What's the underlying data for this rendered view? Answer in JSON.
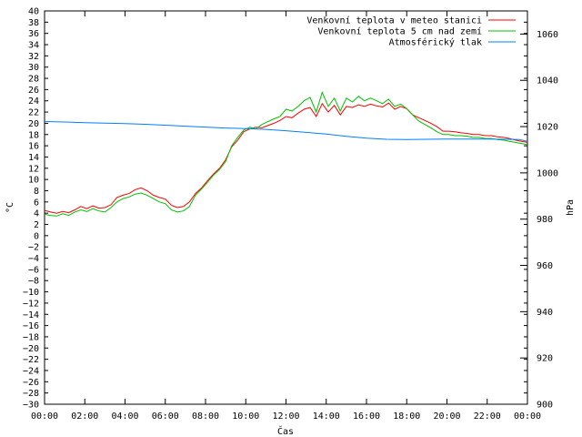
{
  "chart_data": {
    "type": "line",
    "xlabel": "Čas",
    "ylabel": "°C",
    "y2label": "hPa",
    "xlim": [
      0,
      24
    ],
    "ylim": [
      -30,
      40
    ],
    "y2lim": [
      900,
      1070
    ],
    "x_ticks": [
      0,
      2,
      4,
      6,
      8,
      10,
      12,
      14,
      16,
      18,
      20,
      22,
      24
    ],
    "x_tick_labels": [
      "00:00",
      "02:00",
      "04:00",
      "06:00",
      "08:00",
      "10:00",
      "12:00",
      "14:00",
      "16:00",
      "18:00",
      "20:00",
      "22:00",
      "00:00"
    ],
    "y_ticks": [
      -30,
      -28,
      -26,
      -24,
      -22,
      -20,
      -18,
      -16,
      -14,
      -12,
      -10,
      -8,
      -6,
      -4,
      -2,
      0,
      2,
      4,
      6,
      8,
      10,
      12,
      14,
      16,
      18,
      20,
      22,
      24,
      26,
      28,
      30,
      32,
      34,
      36,
      38,
      40
    ],
    "y2_ticks": [
      900,
      920,
      940,
      960,
      980,
      1000,
      1020,
      1040,
      1060
    ],
    "grid": false,
    "legend_position": "top-right",
    "series": [
      {
        "name": "Venkovní teplota v meteo stanici",
        "color": "#ff0000",
        "axis": "left",
        "x": [
          0,
          0.3,
          0.6,
          0.9,
          1.2,
          1.5,
          1.8,
          2.1,
          2.4,
          2.7,
          3.0,
          3.3,
          3.6,
          3.9,
          4.2,
          4.5,
          4.8,
          5.1,
          5.4,
          5.7,
          6.0,
          6.3,
          6.6,
          6.9,
          7.2,
          7.5,
          7.8,
          8.1,
          8.4,
          8.7,
          9.0,
          9.3,
          9.6,
          9.9,
          10.2,
          10.5,
          10.8,
          11.1,
          11.4,
          11.7,
          12.0,
          12.3,
          12.6,
          12.9,
          13.2,
          13.5,
          13.8,
          14.1,
          14.4,
          14.7,
          15.0,
          15.3,
          15.6,
          15.9,
          16.2,
          16.5,
          16.8,
          17.1,
          17.4,
          17.7,
          18.0,
          18.3,
          18.6,
          18.9,
          19.2,
          19.5,
          19.8,
          20.1,
          20.4,
          20.7,
          21.0,
          21.3,
          21.6,
          21.9,
          22.2,
          22.5,
          22.8,
          23.1,
          23.4,
          23.7,
          24.0
        ],
        "y": [
          4.5,
          4.2,
          4.0,
          4.3,
          4.1,
          4.6,
          5.2,
          4.8,
          5.3,
          4.9,
          5.0,
          5.5,
          6.8,
          7.2,
          7.5,
          8.2,
          8.5,
          8.0,
          7.2,
          6.8,
          6.5,
          5.4,
          5.0,
          5.2,
          6.0,
          7.5,
          8.5,
          9.8,
          11.0,
          12.0,
          13.5,
          15.8,
          17.0,
          18.5,
          19.0,
          19.3,
          19.2,
          19.6,
          20.0,
          20.5,
          21.2,
          21.0,
          21.8,
          22.5,
          22.8,
          21.2,
          23.5,
          22.0,
          23.2,
          21.5,
          23.0,
          22.8,
          23.3,
          23.0,
          23.4,
          23.1,
          22.9,
          23.6,
          22.5,
          23.0,
          22.6,
          21.5,
          21.0,
          20.5,
          20.0,
          19.4,
          18.6,
          18.6,
          18.5,
          18.3,
          18.2,
          18.0,
          18.0,
          17.8,
          17.8,
          17.6,
          17.5,
          17.3,
          17.0,
          16.8,
          16.6
        ]
      },
      {
        "name": "Venkovní teplota 5 cm nad zemí",
        "color": "#00c000",
        "axis": "left",
        "x": [
          0,
          0.3,
          0.6,
          0.9,
          1.2,
          1.5,
          1.8,
          2.1,
          2.4,
          2.7,
          3.0,
          3.3,
          3.6,
          3.9,
          4.2,
          4.5,
          4.8,
          5.1,
          5.4,
          5.7,
          6.0,
          6.3,
          6.6,
          6.9,
          7.2,
          7.5,
          7.8,
          8.1,
          8.4,
          8.7,
          9.0,
          9.3,
          9.6,
          9.9,
          10.2,
          10.5,
          10.8,
          11.1,
          11.4,
          11.7,
          12.0,
          12.3,
          12.6,
          12.9,
          13.2,
          13.5,
          13.8,
          14.1,
          14.4,
          14.7,
          15.0,
          15.3,
          15.6,
          15.9,
          16.2,
          16.5,
          16.8,
          17.1,
          17.4,
          17.7,
          18.0,
          18.3,
          18.6,
          18.9,
          19.2,
          19.5,
          19.8,
          20.1,
          20.4,
          20.7,
          21.0,
          21.3,
          21.6,
          21.9,
          22.2,
          22.5,
          22.8,
          23.1,
          23.4,
          23.7,
          24.0
        ],
        "y": [
          3.8,
          3.6,
          3.5,
          3.9,
          3.6,
          4.2,
          4.6,
          4.3,
          4.8,
          4.4,
          4.2,
          5.0,
          6.0,
          6.6,
          6.9,
          7.4,
          7.6,
          7.2,
          6.6,
          6.0,
          5.7,
          4.6,
          4.2,
          4.4,
          5.2,
          7.2,
          8.3,
          9.5,
          10.8,
          11.8,
          13.2,
          16.0,
          17.5,
          18.8,
          19.3,
          19.0,
          19.8,
          20.3,
          20.8,
          21.2,
          22.5,
          22.2,
          23.0,
          24.0,
          24.6,
          22.0,
          25.5,
          23.0,
          24.5,
          22.2,
          24.5,
          23.8,
          24.8,
          24.0,
          24.5,
          24.0,
          23.5,
          24.3,
          23.0,
          23.4,
          22.6,
          21.5,
          20.4,
          19.8,
          19.2,
          18.5,
          18.0,
          18.0,
          17.8,
          17.8,
          17.7,
          17.5,
          17.5,
          17.3,
          17.3,
          17.1,
          17.0,
          16.8,
          16.6,
          16.4,
          16.2
        ]
      },
      {
        "name": "Atmosférický tlak",
        "color": "#0080ff",
        "axis": "right",
        "x": [
          0,
          1,
          2,
          3,
          4,
          5,
          6,
          7,
          8,
          9,
          10,
          11,
          12,
          13,
          14,
          15,
          16,
          17,
          18,
          19,
          20,
          21,
          22,
          23,
          23.6,
          24.0
        ],
        "y": [
          1022.2,
          1022.0,
          1021.7,
          1021.5,
          1021.3,
          1021.0,
          1020.6,
          1020.2,
          1019.8,
          1019.4,
          1019.1,
          1018.8,
          1018.2,
          1017.5,
          1016.8,
          1015.8,
          1015.0,
          1014.5,
          1014.4,
          1014.5,
          1014.6,
          1014.6,
          1014.6,
          1014.5,
          1014.4,
          1013.6
        ]
      }
    ]
  }
}
